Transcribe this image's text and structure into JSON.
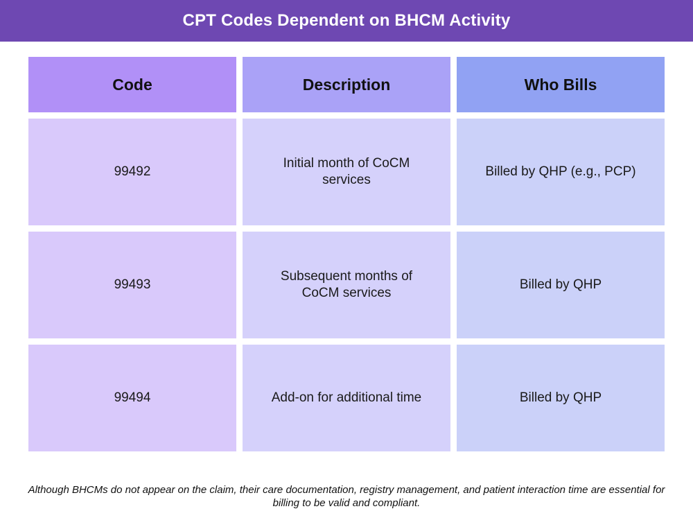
{
  "title": "CPT Codes Dependent on BHCM Activity",
  "table": {
    "headers": [
      "Code",
      "Description",
      "Who Bills"
    ],
    "rows": [
      [
        "99492",
        "Initial month of CoCM services",
        "Billed by QHP (e.g., PCP)"
      ],
      [
        "99493",
        "Subsequent months of CoCM services",
        "Billed by QHP"
      ],
      [
        "99494",
        "Add-on for additional time",
        "Billed by QHP"
      ]
    ]
  },
  "footnote": "Although BHCMs do not appear on the claim, their care documentation, registry management, and patient interaction time are essential for billing to be valid and compliant.",
  "colors": {
    "title_bar": "#6e48b2",
    "header_code": "#b190f7",
    "header_description": "#aaa2f7",
    "header_who_bills": "#91a2f3",
    "cell_code": "#d9c9fb",
    "cell_description": "#d5d1fb",
    "cell_who_bills": "#cbd1f9"
  }
}
